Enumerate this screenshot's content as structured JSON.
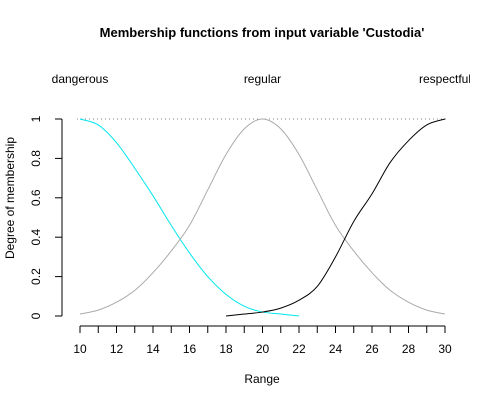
{
  "chart_data": {
    "type": "line",
    "title": "Membership functions from input variable 'Custodia'",
    "xlabel": "Range",
    "ylabel": "Degree of membership",
    "xlim": [
      10,
      30
    ],
    "ylim": [
      0,
      1
    ],
    "x_ticks": [
      "10",
      "12",
      "14",
      "16",
      "18",
      "20",
      "22",
      "24",
      "26",
      "28",
      "30"
    ],
    "y_ticks": [
      "0",
      "0.2",
      "0.4",
      "0.6",
      "0.8",
      "1"
    ],
    "reference_line": {
      "y": 1,
      "style": "dotted"
    },
    "series": [
      {
        "name": "dangerous",
        "color": "#00e5ee",
        "x": [
          10,
          11,
          12,
          13,
          14,
          15,
          16,
          17,
          18,
          19,
          20,
          21,
          22
        ],
        "y": [
          1.0,
          0.97,
          0.88,
          0.75,
          0.61,
          0.46,
          0.32,
          0.2,
          0.11,
          0.05,
          0.02,
          0.01,
          0.0
        ]
      },
      {
        "name": "regular",
        "color": "#aaaaaa",
        "x": [
          10,
          11,
          12,
          13,
          14,
          15,
          16,
          17,
          18,
          19,
          20,
          21,
          22,
          23,
          24,
          25,
          26,
          27,
          28,
          29,
          30
        ],
        "y": [
          0.01,
          0.03,
          0.07,
          0.13,
          0.22,
          0.33,
          0.46,
          0.64,
          0.82,
          0.95,
          1.0,
          0.95,
          0.82,
          0.64,
          0.46,
          0.33,
          0.22,
          0.13,
          0.07,
          0.03,
          0.01
        ]
      },
      {
        "name": "respectful",
        "color": "#000000",
        "x": [
          18,
          19,
          20,
          21,
          22,
          23,
          24,
          25,
          26,
          27,
          28,
          29,
          30
        ],
        "y": [
          0.0,
          0.01,
          0.02,
          0.04,
          0.08,
          0.15,
          0.3,
          0.48,
          0.62,
          0.78,
          0.89,
          0.97,
          1.0
        ]
      }
    ],
    "mf_labels": [
      {
        "text": "dangerous",
        "x": 10
      },
      {
        "text": "regular",
        "x": 20
      },
      {
        "text": "respectful",
        "x": 30
      }
    ]
  }
}
